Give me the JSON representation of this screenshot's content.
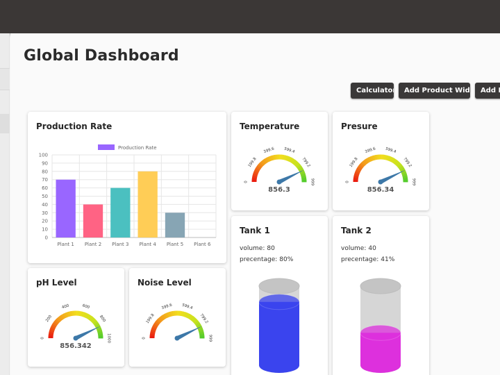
{
  "header": {
    "title": "Global Dashboard"
  },
  "toolbar": {
    "calculator_label": "Calculator",
    "add_product_widget_label": "Add Product Widget",
    "add_device_label": "Add De"
  },
  "colors": {
    "topbar": "#3b3736",
    "button": "#3a3838",
    "gauge_needle": "#3d78a8",
    "tank1_fill": "#3a44ee",
    "tank2_fill": "#dd30dd"
  },
  "widgets": {
    "production_rate": {
      "title": "Production Rate",
      "chart_data": {
        "type": "bar",
        "title": "",
        "legend": [
          "Production Rate"
        ],
        "legend_placement": "top",
        "categories": [
          "Plant 1",
          "Plant 2",
          "Plant 3",
          "Plant 4",
          "Plant 5",
          "Plant 6"
        ],
        "series": [
          {
            "name": "Production Rate",
            "values": [
              70,
              40,
              60,
              80,
              30,
              0
            ]
          }
        ],
        "bar_colors": [
          "#9966ff",
          "#ff6384",
          "#4bc0c0",
          "#ffcd56",
          "#87a5b4",
          "#cccccc"
        ],
        "yticks": [
          "100",
          "90",
          "80",
          "70",
          "60",
          "50",
          "40",
          "30",
          "20",
          "10",
          "0"
        ],
        "ylim": [
          0,
          100
        ],
        "grid": true
      }
    },
    "temperature": {
      "title": "Temperature",
      "value": "856.3",
      "value_num": 856.3,
      "min": 0,
      "max": 999,
      "ticks": [
        "0",
        "199.8",
        "399.6",
        "599.4",
        "799.2",
        "999"
      ]
    },
    "presure": {
      "title": "Presure",
      "value": "856.34",
      "value_num": 856.34,
      "min": 0,
      "max": 999,
      "ticks": [
        "0",
        "199.8",
        "399.6",
        "599.4",
        "799.2",
        "999"
      ]
    },
    "ph_level": {
      "title": "pH Level",
      "value": "856.342",
      "value_num": 856.342,
      "min": 0,
      "max": 1000,
      "ticks": [
        "0",
        "200",
        "400",
        "600",
        "800",
        "1000"
      ]
    },
    "noise_level": {
      "title": "Noise Level",
      "value": "",
      "value_num": 856.3,
      "min": 0,
      "max": 999,
      "ticks": [
        "0",
        "199.8",
        "399.6",
        "599.4",
        "799.2",
        "999"
      ]
    },
    "tank1": {
      "title": "Tank 1",
      "volume_label": "volume:",
      "volume": "80",
      "percentage_label": "precentage:",
      "percentage": "80%",
      "fill_fraction": 0.8
    },
    "tank2": {
      "title": "Tank 2",
      "volume_label": "volume:",
      "volume": "40",
      "percentage_label": "precentage:",
      "percentage": "41%",
      "fill_fraction": 0.41
    }
  }
}
